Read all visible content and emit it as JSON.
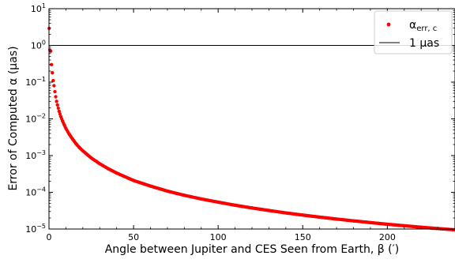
{
  "chart_data": {
    "type": "scatter",
    "xlabel": "Angle between Jupiter and CES Seen from Earth, β (′)",
    "ylabel": "Error of Computed α (μas)",
    "xlim": [
      0,
      240
    ],
    "ylim": [
      1e-05,
      10
    ],
    "yscale": "log",
    "x_ticks": [
      0,
      50,
      100,
      150,
      200
    ],
    "y_ticks": [
      {
        "value": 1e-05,
        "base": "10",
        "exp": "−5"
      },
      {
        "value": 0.0001,
        "base": "10",
        "exp": "−4"
      },
      {
        "value": 0.001,
        "base": "10",
        "exp": "−3"
      },
      {
        "value": 0.01,
        "base": "10",
        "exp": "−2"
      },
      {
        "value": 0.1,
        "base": "10",
        "exp": "−1"
      },
      {
        "value": 1,
        "base": "10",
        "exp": "0"
      },
      {
        "value": 10,
        "base": "10",
        "exp": "1"
      }
    ],
    "legend_position": "top-right",
    "series": [
      {
        "name_main": "α",
        "name_sub": "err, c",
        "type": "scatter",
        "color": "#ff0000",
        "x": [
          0.1,
          0.5,
          1,
          1.5,
          2,
          2.5,
          3,
          3.5,
          4,
          4.5,
          5,
          6,
          7,
          8,
          9,
          10,
          12,
          14,
          16,
          18,
          20,
          25,
          30,
          35,
          40,
          50,
          60,
          70,
          80,
          90,
          100,
          110,
          120,
          130,
          140,
          150,
          160,
          170,
          180,
          190,
          200,
          210,
          220,
          230,
          240
        ],
        "y": [
          2.9,
          0.75,
          0.7,
          0.3,
          0.18,
          0.11,
          0.08,
          0.055,
          0.04,
          0.03,
          0.024,
          0.016,
          0.0115,
          0.0088,
          0.0069,
          0.0055,
          0.0038,
          0.0028,
          0.0021,
          0.00165,
          0.00135,
          0.00086,
          0.0006,
          0.00044,
          0.000335,
          0.00021,
          0.000148,
          0.000108,
          8.3e-05,
          6.6e-05,
          5.4e-05,
          4.45e-05,
          3.75e-05,
          3.2e-05,
          2.75e-05,
          2.4e-05,
          2.11e-05,
          1.87e-05,
          1.67e-05,
          1.5e-05,
          1.35e-05,
          1.23e-05,
          1.12e-05,
          1.03e-05,
          9.5e-06
        ]
      },
      {
        "name": "1 μas",
        "type": "hline",
        "value": 1,
        "color": "#000000"
      }
    ]
  }
}
